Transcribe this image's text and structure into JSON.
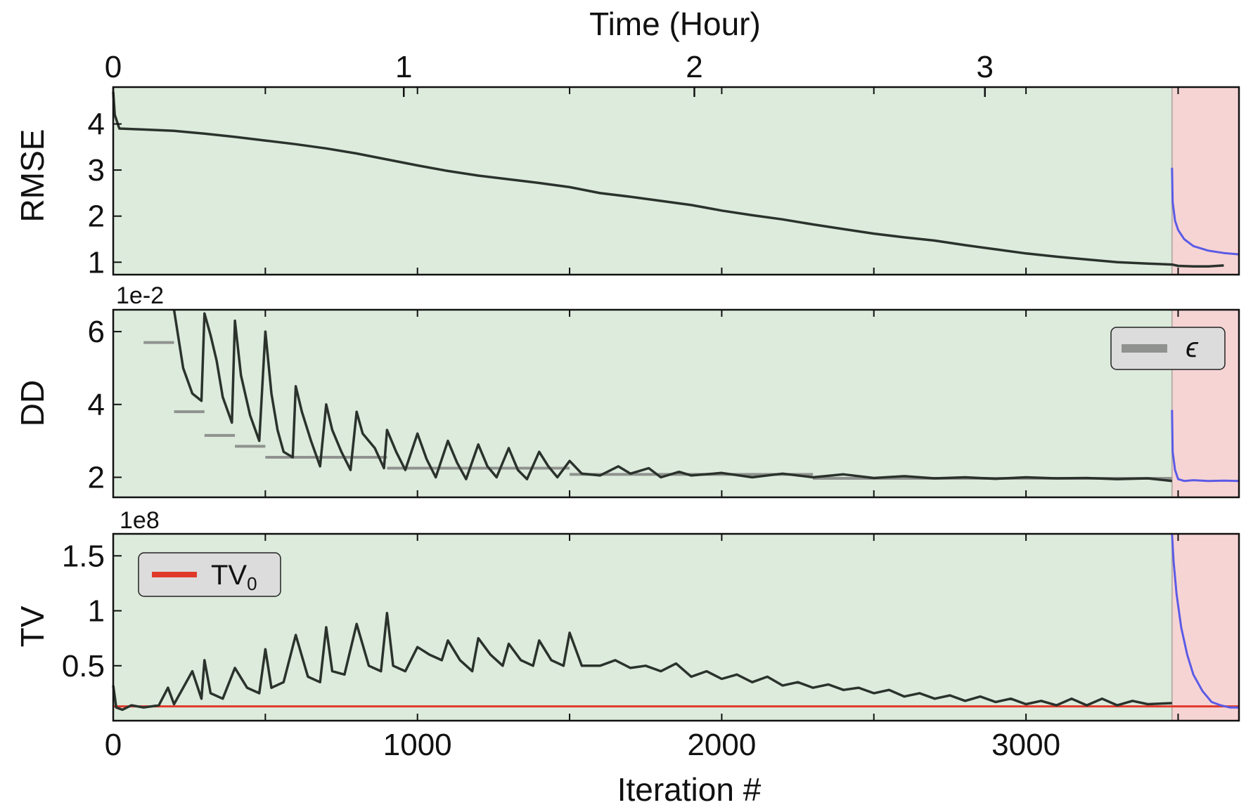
{
  "colors": {
    "train_bg": "#dcebdc",
    "finetune_bg": "#f7d4d4",
    "main_line": "#2b322c",
    "finetune_line": "#5b5be6",
    "epsilon_line": "#8f928f",
    "tv0_line": "#e0392b",
    "legend_bg": "#dcdcdc"
  },
  "chart_data": [
    {
      "type": "line",
      "id": "rmse",
      "ylabel": "RMSE",
      "ylim": [
        0.73,
        4.8
      ],
      "yticks": [
        1,
        2,
        3,
        4
      ],
      "ytick_labels": [
        "1",
        "2",
        "3",
        "4"
      ],
      "xlim": [
        0,
        3700
      ],
      "top_axis": {
        "label": "Time (Hour)",
        "ticks": [
          0,
          1,
          2,
          3
        ],
        "tick_labels": [
          "0",
          "1",
          "2",
          "3"
        ],
        "iterations_per_hour": 955
      },
      "shaded_regions": [
        {
          "from": 0,
          "to": 3480,
          "color_key": "train_bg"
        },
        {
          "from": 3480,
          "to": 3700,
          "color_key": "finetune_bg"
        }
      ],
      "series": [
        {
          "color_key": "main_line",
          "x": [
            0,
            5,
            20,
            100,
            200,
            300,
            400,
            500,
            600,
            700,
            800,
            900,
            1000,
            1100,
            1200,
            1300,
            1400,
            1500,
            1600,
            1700,
            1800,
            1900,
            2000,
            2100,
            2200,
            2300,
            2400,
            2500,
            2600,
            2700,
            2800,
            2900,
            3000,
            3100,
            3200,
            3300,
            3400,
            3480,
            3500,
            3550,
            3600,
            3650
          ],
          "y": [
            4.7,
            4.2,
            3.9,
            3.88,
            3.85,
            3.79,
            3.72,
            3.64,
            3.56,
            3.47,
            3.36,
            3.23,
            3.1,
            2.98,
            2.88,
            2.8,
            2.72,
            2.63,
            2.5,
            2.42,
            2.33,
            2.24,
            2.12,
            2.02,
            1.93,
            1.82,
            1.72,
            1.62,
            1.54,
            1.47,
            1.37,
            1.28,
            1.19,
            1.12,
            1.06,
            1.0,
            0.97,
            0.95,
            0.92,
            0.91,
            0.91,
            0.93
          ]
        },
        {
          "color_key": "finetune_line",
          "x": [
            3480,
            3482,
            3490,
            3500,
            3520,
            3550,
            3600,
            3650,
            3700
          ],
          "y": [
            3.05,
            2.3,
            1.9,
            1.7,
            1.5,
            1.35,
            1.25,
            1.2,
            1.17
          ]
        }
      ]
    },
    {
      "type": "line",
      "id": "dd",
      "ylabel": "DD",
      "exponent_label": "1e-2",
      "ylim": [
        1.45,
        6.6
      ],
      "yticks": [
        2,
        4,
        6
      ],
      "ytick_labels": [
        "2",
        "4",
        "6"
      ],
      "xlim": [
        0,
        3700
      ],
      "shaded_regions": [
        {
          "from": 0,
          "to": 3480,
          "color_key": "train_bg"
        },
        {
          "from": 3480,
          "to": 3700,
          "color_key": "finetune_bg"
        }
      ],
      "legend": {
        "label": "ϵ",
        "placement": "top-right",
        "color_key": "epsilon_line"
      },
      "epsilon_segments": [
        {
          "x": [
            100,
            200
          ],
          "y": 5.7
        },
        {
          "x": [
            200,
            300
          ],
          "y": 3.8
        },
        {
          "x": [
            300,
            400
          ],
          "y": 3.15
        },
        {
          "x": [
            400,
            500
          ],
          "y": 2.85
        },
        {
          "x": [
            500,
            900
          ],
          "y": 2.55
        },
        {
          "x": [
            900,
            1500
          ],
          "y": 2.25
        },
        {
          "x": [
            1500,
            2300
          ],
          "y": 2.08
        },
        {
          "x": [
            2300,
            3480
          ],
          "y": 1.97
        }
      ],
      "series": [
        {
          "color_key": "main_line",
          "x": [
            200,
            230,
            260,
            290,
            300,
            320,
            340,
            360,
            390,
            400,
            420,
            450,
            480,
            500,
            520,
            540,
            560,
            590,
            600,
            620,
            650,
            680,
            700,
            720,
            750,
            780,
            800,
            820,
            860,
            890,
            900,
            930,
            960,
            1000,
            1030,
            1060,
            1100,
            1130,
            1160,
            1200,
            1230,
            1260,
            1300,
            1330,
            1360,
            1400,
            1430,
            1460,
            1500,
            1540,
            1600,
            1660,
            1700,
            1760,
            1800,
            1860,
            1900,
            2000,
            2100,
            2200,
            2300,
            2400,
            2500,
            2600,
            2700,
            2800,
            2900,
            3000,
            3100,
            3200,
            3300,
            3400,
            3480
          ],
          "y": [
            6.6,
            5.0,
            4.3,
            4.1,
            6.5,
            5.9,
            5.2,
            4.2,
            3.5,
            6.3,
            4.8,
            3.7,
            3.0,
            6.0,
            4.3,
            3.3,
            2.7,
            2.55,
            4.5,
            3.8,
            3.0,
            2.3,
            4.0,
            3.3,
            2.7,
            2.2,
            3.8,
            3.2,
            2.8,
            2.25,
            3.3,
            2.7,
            2.2,
            3.2,
            2.5,
            2.0,
            3.0,
            2.4,
            1.95,
            2.9,
            2.3,
            2.0,
            2.8,
            2.2,
            1.95,
            2.7,
            2.3,
            2.0,
            2.45,
            2.1,
            2.05,
            2.3,
            2.1,
            2.25,
            2.0,
            2.15,
            2.05,
            2.12,
            2.0,
            2.1,
            2.0,
            2.08,
            1.98,
            2.03,
            1.97,
            2.0,
            1.96,
            2.0,
            1.97,
            1.98,
            1.95,
            1.97,
            1.9
          ]
        },
        {
          "color_key": "finetune_line",
          "x": [
            3480,
            3482,
            3490,
            3500,
            3520,
            3550,
            3600,
            3650,
            3700
          ],
          "y": [
            3.85,
            2.7,
            2.2,
            1.95,
            1.9,
            1.92,
            1.9,
            1.91,
            1.9
          ]
        }
      ]
    },
    {
      "type": "line",
      "id": "tv",
      "ylabel": "TV",
      "exponent_label": "1e8",
      "ylim": [
        0.0,
        1.7
      ],
      "yticks": [
        0.5,
        1.0,
        1.5
      ],
      "ytick_labels": [
        "0.5",
        "1",
        "1.5"
      ],
      "xlim": [
        0,
        3700
      ],
      "xlabel": "Iteration #",
      "xticks": [
        0,
        1000,
        2000,
        3000
      ],
      "xtick_labels": [
        "0",
        "1000",
        "2000",
        "3000"
      ],
      "shaded_regions": [
        {
          "from": 0,
          "to": 3480,
          "color_key": "train_bg"
        },
        {
          "from": 3480,
          "to": 3700,
          "color_key": "finetune_bg"
        }
      ],
      "legend": {
        "label_main": "TV",
        "label_sub": "0",
        "placement": "top-left",
        "color_key": "tv0_line"
      },
      "tv0_value": 0.13,
      "series": [
        {
          "color_key": "main_line",
          "x": [
            0,
            10,
            30,
            60,
            100,
            150,
            180,
            200,
            230,
            260,
            290,
            300,
            320,
            360,
            400,
            440,
            480,
            500,
            520,
            560,
            600,
            640,
            680,
            700,
            720,
            760,
            800,
            840,
            880,
            900,
            920,
            960,
            1000,
            1040,
            1080,
            1100,
            1140,
            1180,
            1200,
            1240,
            1280,
            1300,
            1340,
            1380,
            1400,
            1440,
            1480,
            1500,
            1540,
            1600,
            1650,
            1700,
            1750,
            1800,
            1850,
            1900,
            1950,
            2000,
            2050,
            2100,
            2150,
            2200,
            2250,
            2300,
            2350,
            2400,
            2450,
            2500,
            2550,
            2600,
            2650,
            2700,
            2750,
            2800,
            2850,
            2900,
            2950,
            3000,
            3050,
            3100,
            3150,
            3200,
            3250,
            3300,
            3350,
            3400,
            3480
          ],
          "y": [
            0.32,
            0.12,
            0.1,
            0.14,
            0.12,
            0.14,
            0.3,
            0.15,
            0.3,
            0.45,
            0.2,
            0.55,
            0.25,
            0.2,
            0.48,
            0.3,
            0.25,
            0.65,
            0.3,
            0.35,
            0.78,
            0.4,
            0.35,
            0.85,
            0.45,
            0.42,
            0.88,
            0.5,
            0.45,
            0.98,
            0.5,
            0.45,
            0.67,
            0.6,
            0.55,
            0.73,
            0.55,
            0.45,
            0.75,
            0.6,
            0.5,
            0.7,
            0.55,
            0.5,
            0.73,
            0.55,
            0.5,
            0.8,
            0.5,
            0.5,
            0.55,
            0.48,
            0.5,
            0.45,
            0.52,
            0.4,
            0.45,
            0.38,
            0.42,
            0.35,
            0.4,
            0.32,
            0.35,
            0.3,
            0.33,
            0.28,
            0.3,
            0.25,
            0.28,
            0.22,
            0.25,
            0.2,
            0.23,
            0.18,
            0.22,
            0.17,
            0.2,
            0.15,
            0.18,
            0.14,
            0.2,
            0.14,
            0.2,
            0.14,
            0.18,
            0.15,
            0.16
          ]
        },
        {
          "color_key": "finetune_line",
          "x": [
            3480,
            3485,
            3495,
            3510,
            3530,
            3550,
            3580,
            3610,
            3640,
            3670,
            3700
          ],
          "y": [
            1.7,
            1.45,
            1.15,
            0.85,
            0.6,
            0.42,
            0.27,
            0.17,
            0.14,
            0.12,
            0.12
          ]
        }
      ]
    }
  ]
}
